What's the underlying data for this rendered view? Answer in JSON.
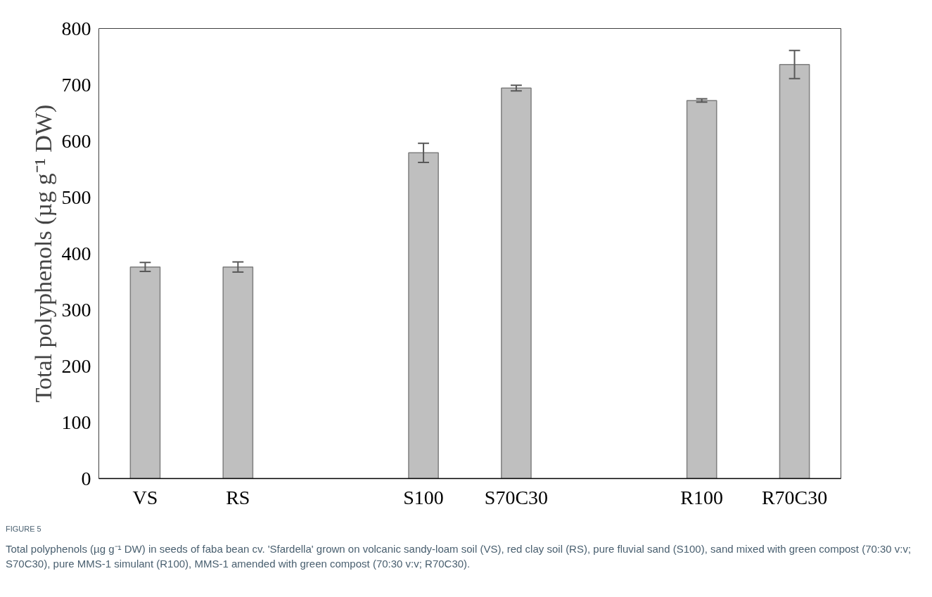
{
  "chart_data": {
    "type": "bar",
    "categories": [
      "VS",
      "RS",
      null,
      "S100",
      "S70C30",
      null,
      "R100",
      "R70C30"
    ],
    "values": [
      376,
      376,
      null,
      579,
      694,
      null,
      672,
      736
    ],
    "errors": [
      8,
      9,
      null,
      17,
      5,
      null,
      3,
      25
    ],
    "color": "#bfbfbf",
    "ylabel": "Total polyphenols (µg g⁻¹ DW)",
    "ylim": [
      0,
      800
    ],
    "yticks": [
      0,
      100,
      200,
      300,
      400,
      500,
      600,
      700,
      800
    ],
    "grid": false,
    "annotations": [
      "FIGURE 5",
      "Total polyphenols (µg g⁻¹ DW) in seeds of faba bean cv. 'Sfardella' grown on volcanic sandy-loam soil (VS), red clay soil (RS), pure fluvial sand (S100), sand mixed with green compost (70:30 v:v; S70C30), pure MMS-1 simulant (R100), MMS-1 amended with green compost (70:30 v:v; R70C30)."
    ]
  }
}
